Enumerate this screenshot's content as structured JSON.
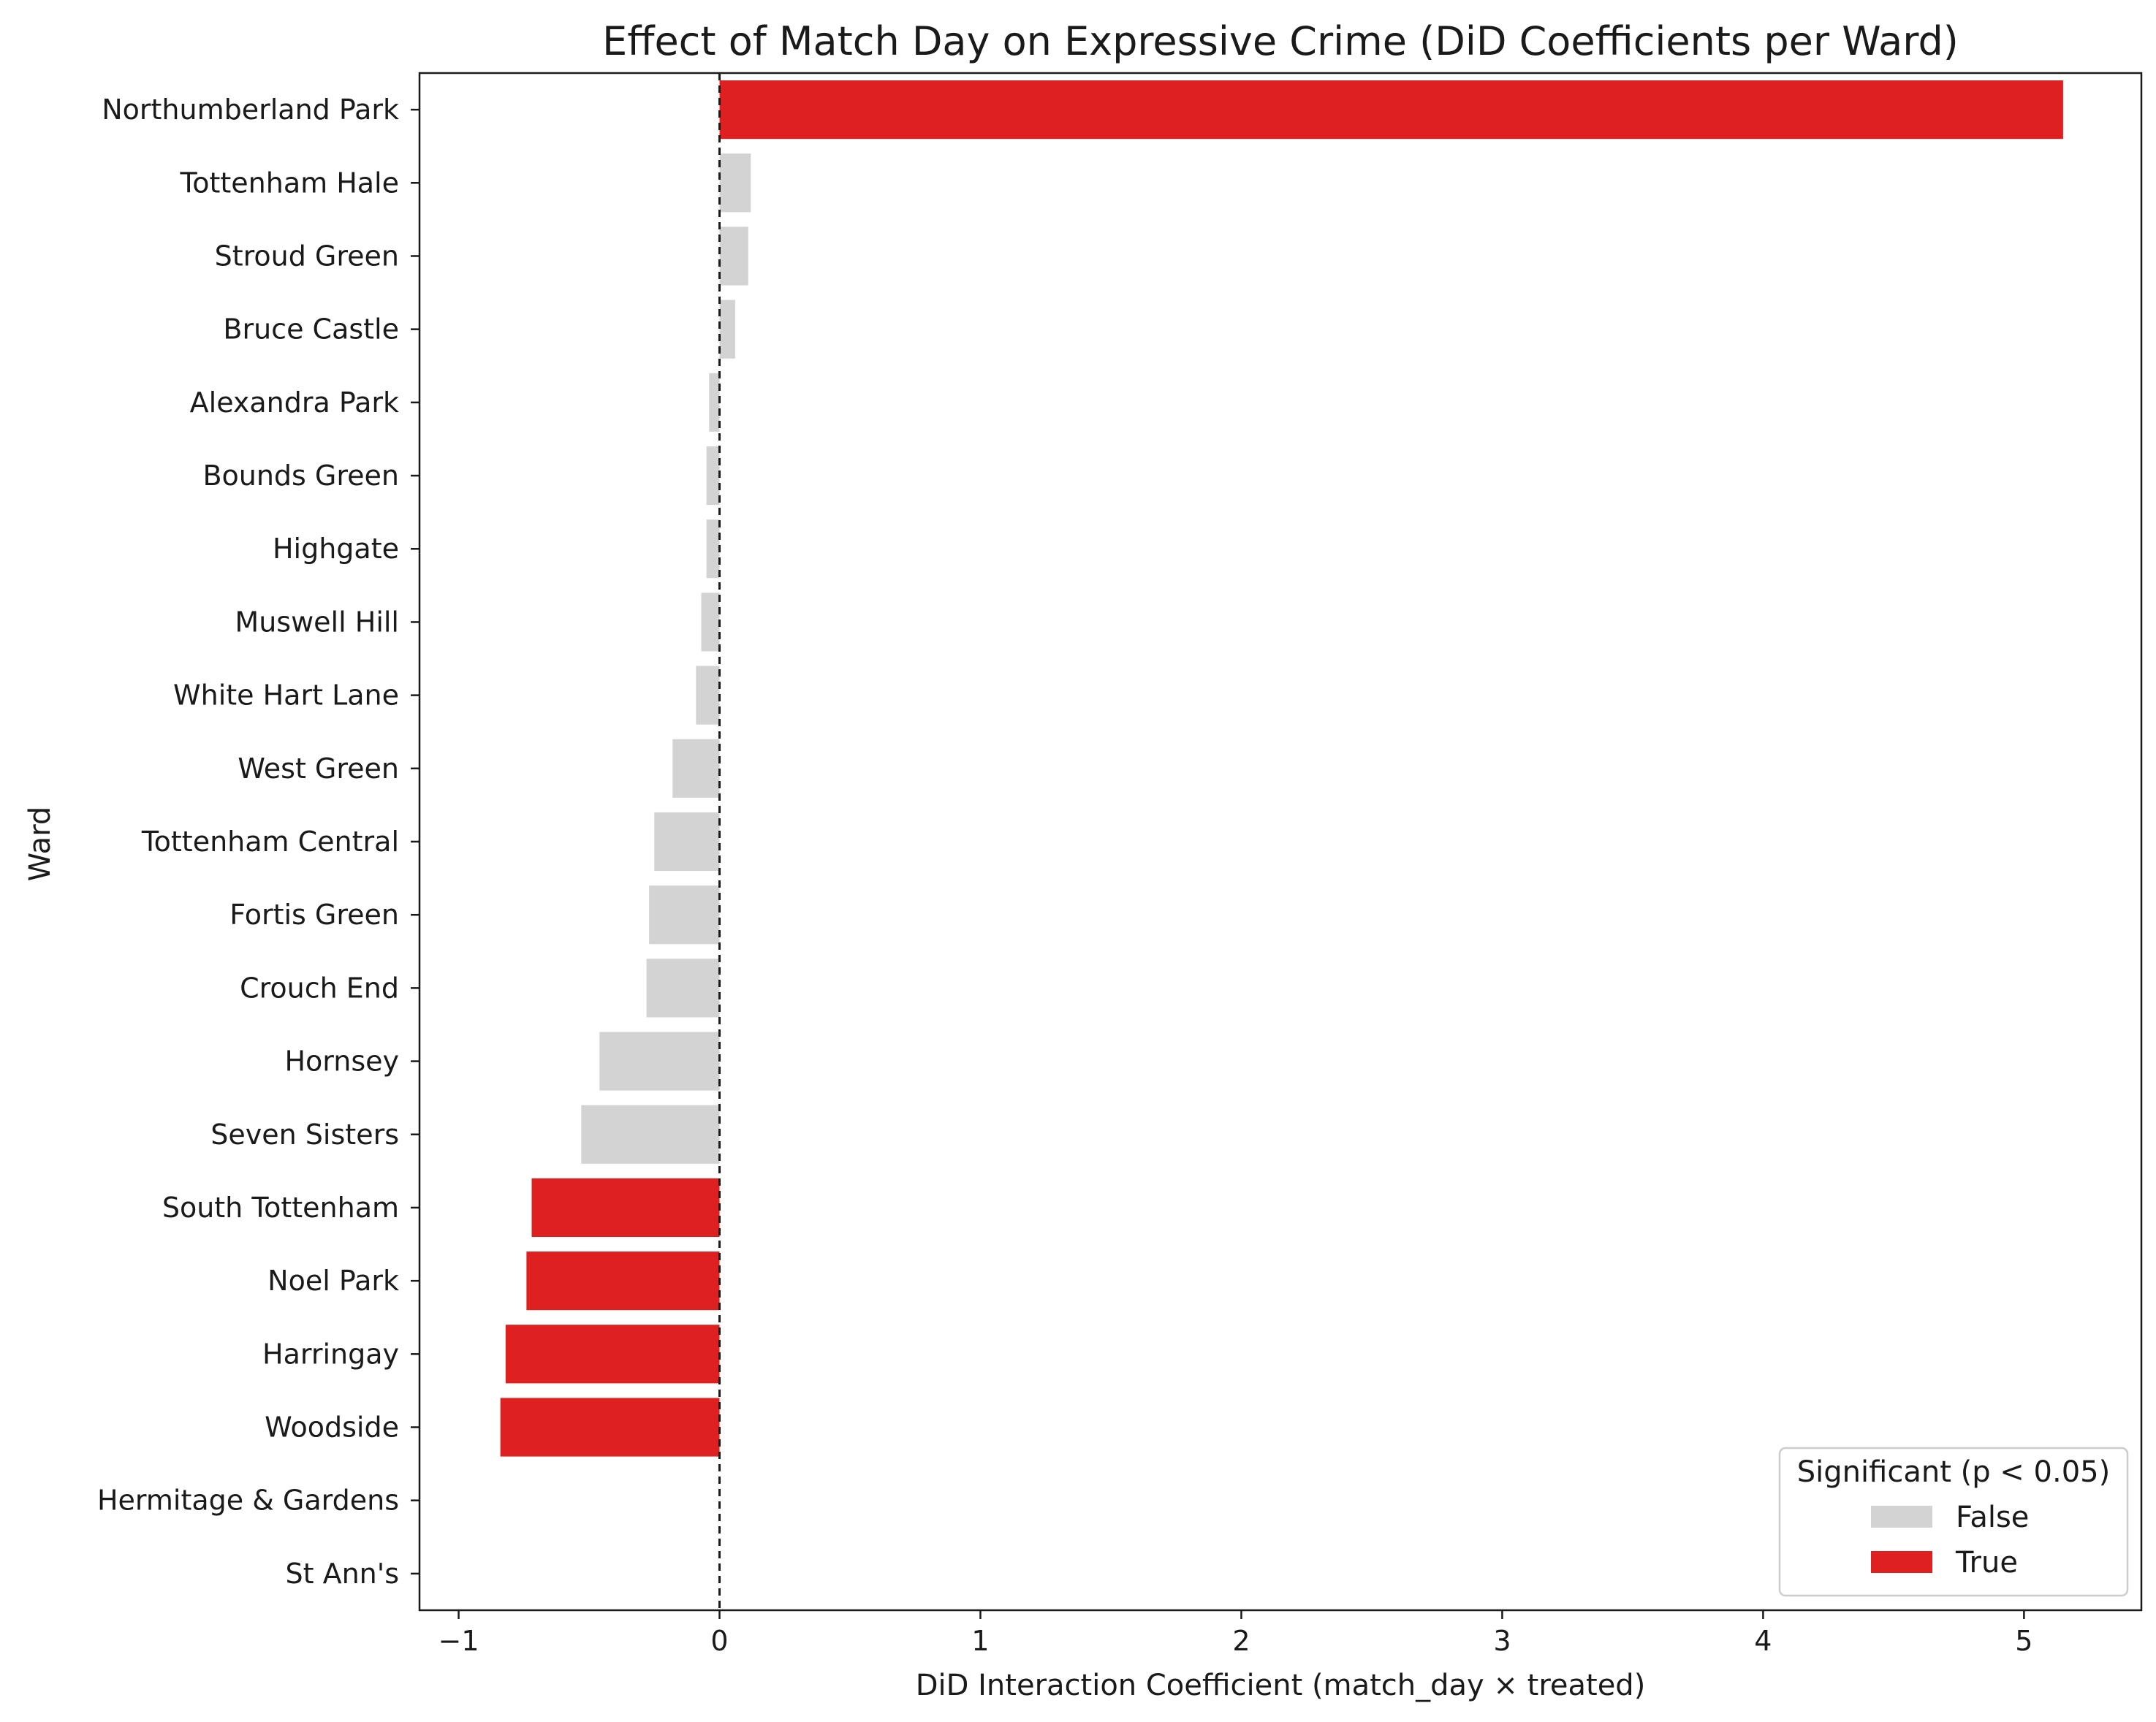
{
  "chart_data": {
    "type": "bar",
    "orientation": "horizontal",
    "title": "Effect of Match Day on Expressive Crime (DiD Coefficients per Ward)",
    "xlabel": "DiD Interaction Coefficient (match_day × treated)",
    "ylabel": "Ward",
    "xlim": [
      -1.15,
      5.45
    ],
    "xticks": [
      -1,
      0,
      1,
      2,
      3,
      4,
      5
    ],
    "xtick_labels": [
      "−1",
      "0",
      "1",
      "2",
      "3",
      "4",
      "5"
    ],
    "reference_line": 0,
    "categories": [
      "Northumberland Park",
      "Tottenham Hale",
      "Stroud Green",
      "Bruce Castle",
      "Alexandra Park",
      "Bounds Green",
      "Highgate",
      "Muswell Hill",
      "White Hart Lane",
      "West Green",
      "Tottenham Central",
      "Fortis Green",
      "Crouch End",
      "Hornsey",
      "Seven Sisters",
      "South Tottenham",
      "Noel Park",
      "Harringay",
      "Woodside",
      "Hermitage & Gardens",
      "St Ann's"
    ],
    "values": [
      5.15,
      0.12,
      0.11,
      0.06,
      -0.04,
      -0.05,
      -0.05,
      -0.07,
      -0.09,
      -0.18,
      -0.25,
      -0.27,
      -0.28,
      -0.46,
      -0.53,
      -0.72,
      -0.74,
      -0.82,
      -0.84,
      null,
      null
    ],
    "significant": [
      true,
      false,
      false,
      false,
      false,
      false,
      false,
      false,
      false,
      false,
      false,
      false,
      false,
      false,
      false,
      true,
      true,
      true,
      true,
      false,
      false
    ],
    "legend": {
      "title": "Significant (p < 0.05)",
      "location": "lower-right",
      "entries": [
        {
          "label": "False",
          "color": "#d3d3d3"
        },
        {
          "label": "True",
          "color": "#de2021"
        }
      ]
    },
    "grid": false
  },
  "colors": {
    "significant": "#de2021",
    "not_significant": "#d3d3d3",
    "axis": "#1a1a1a"
  }
}
